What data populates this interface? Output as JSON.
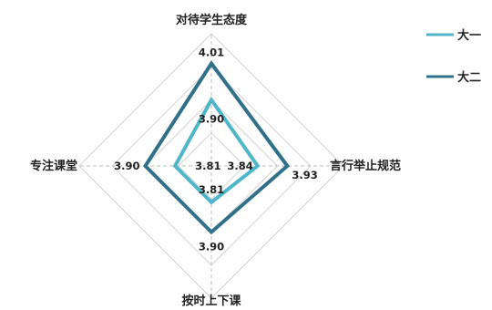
{
  "chart_data": {
    "type": "radar",
    "axes": [
      "对待学生态度",
      "言行举止规范",
      "按时上下课",
      "专注课堂"
    ],
    "series": [
      {
        "name": "大一",
        "values": [
          3.9,
          3.84,
          3.81,
          3.81
        ],
        "color": "#4fb6c9"
      },
      {
        "name": "大二",
        "values": [
          4.01,
          3.93,
          3.9,
          3.9
        ],
        "color": "#31708a"
      }
    ],
    "legend_position": "top-right",
    "grid": true
  }
}
